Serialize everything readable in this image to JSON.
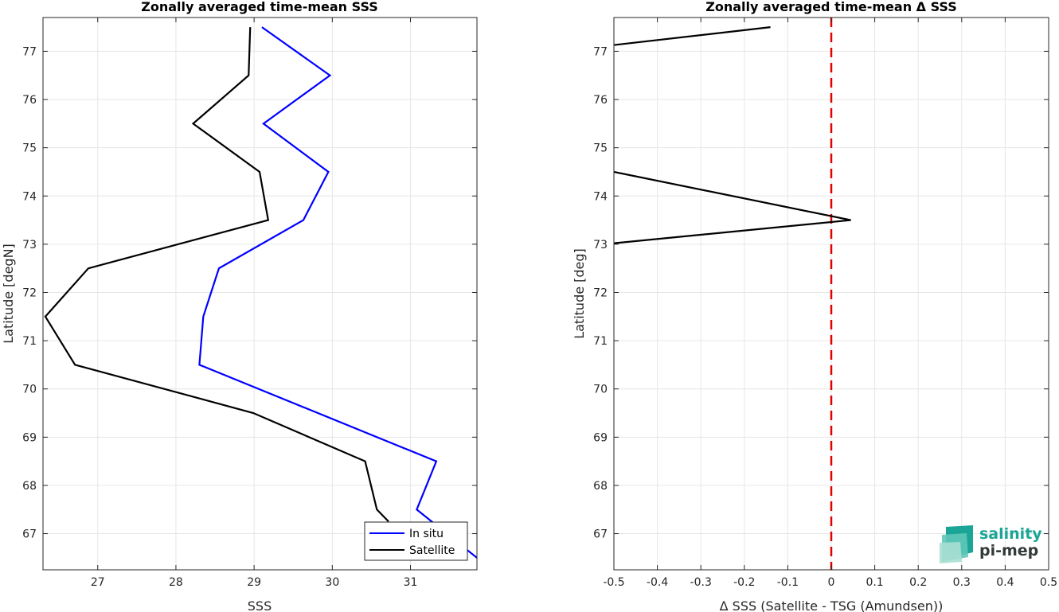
{
  "chart_data": [
    {
      "type": "line",
      "title": "Zonally averaged time-mean SSS",
      "xlabel": "SSS",
      "ylabel": "Latitude [degN]",
      "xlim": [
        26.3,
        31.85
      ],
      "ylim": [
        66.25,
        77.7
      ],
      "xticks": [
        27,
        28,
        29,
        30,
        31
      ],
      "yticks": [
        67,
        68,
        69,
        70,
        71,
        72,
        73,
        74,
        75,
        76,
        77
      ],
      "grid": true,
      "legend_position": "bottom-right",
      "series": [
        {
          "name": "In situ",
          "color": "#0000ff",
          "x": [
            29.1,
            29.97,
            29.12,
            29.95,
            29.63,
            28.55,
            28.35,
            28.3,
            31.33,
            31.08,
            31.85
          ],
          "y": [
            77.5,
            76.5,
            75.5,
            74.5,
            73.5,
            72.5,
            71.5,
            70.5,
            68.5,
            67.5,
            66.5
          ]
        },
        {
          "name": "Satellite",
          "color": "#000000",
          "x": [
            28.95,
            28.93,
            28.22,
            29.07,
            29.18,
            26.88,
            26.33,
            26.71,
            28.99,
            30.42,
            30.57,
            30.72
          ],
          "y": [
            77.5,
            76.5,
            75.5,
            74.5,
            73.5,
            72.5,
            71.5,
            70.5,
            69.5,
            68.5,
            67.5,
            67.25
          ]
        }
      ]
    },
    {
      "type": "line",
      "title": "Zonally averaged time-mean Δ SSS",
      "xlabel": "Δ SSS (Satellite - TSG (Amundsen))",
      "ylabel": "Latitude [deg]",
      "xlim": [
        -0.5,
        0.5
      ],
      "ylim": [
        66.25,
        77.7
      ],
      "xticks": [
        -0.5,
        -0.4,
        -0.3,
        -0.2,
        -0.1,
        0,
        0.1,
        0.2,
        0.3,
        0.4,
        0.5
      ],
      "yticks": [
        67,
        68,
        69,
        70,
        71,
        72,
        73,
        74,
        75,
        76,
        77
      ],
      "grid": true,
      "reference_line": {
        "x": 0,
        "color": "#e00000",
        "style": "dashed"
      },
      "series": [
        {
          "color": "#000000",
          "x": [
            -0.5,
            -0.14
          ],
          "y": [
            77.13,
            77.5
          ]
        },
        {
          "color": "#000000",
          "x": [
            -0.5,
            0.045,
            -0.5
          ],
          "y": [
            74.5,
            73.5,
            73.02
          ]
        }
      ]
    }
  ],
  "logo": {
    "line1": "salinity",
    "line2": "pi-mep",
    "colors": [
      "#1aa596",
      "#5fc8b8",
      "#a8dfd3"
    ]
  }
}
